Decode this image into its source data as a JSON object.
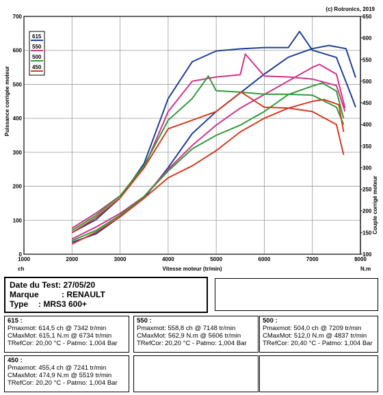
{
  "chart_data": {
    "type": "line",
    "copyright": "(c) Rotronics, 2019",
    "xlabel": "Vitesse moteur (tr/min)",
    "ylabel_left": "Puissance corrigée moteur",
    "ylabel_right": "Couple corrigé moteur",
    "unit_left": "ch",
    "unit_right": "N.m",
    "xlim": [
      1000,
      8000
    ],
    "ylim_left": [
      0,
      700
    ],
    "ylim_right": [
      100,
      650
    ],
    "x_ticks": [
      1000,
      2000,
      3000,
      4000,
      5000,
      6000,
      7000,
      8000
    ],
    "y_ticks_left": [
      0,
      100,
      200,
      300,
      400,
      500,
      600,
      700
    ],
    "y_ticks_right": [
      100,
      150,
      200,
      250,
      300,
      350,
      400,
      450,
      500,
      550,
      600,
      650
    ],
    "grid": true,
    "legend_position": "top-left",
    "series": [
      {
        "name": "615",
        "color": "#1f3f94",
        "power": [
          [
            2000,
            35
          ],
          [
            2500,
            60
          ],
          [
            3000,
            110
          ],
          [
            3500,
            165
          ],
          [
            4000,
            255
          ],
          [
            4500,
            355
          ],
          [
            5000,
            420
          ],
          [
            5500,
            475
          ],
          [
            6000,
            530
          ],
          [
            6500,
            580
          ],
          [
            7000,
            605
          ],
          [
            7342,
            614.5
          ],
          [
            7700,
            605
          ],
          [
            7900,
            520
          ]
        ],
        "torque": [
          [
            2000,
            150
          ],
          [
            2500,
            180
          ],
          [
            3000,
            230
          ],
          [
            3500,
            310
          ],
          [
            4000,
            460
          ],
          [
            4500,
            545
          ],
          [
            5000,
            570
          ],
          [
            5500,
            575
          ],
          [
            6000,
            578
          ],
          [
            6500,
            578
          ],
          [
            6734,
            615.1
          ],
          [
            7000,
            572
          ],
          [
            7500,
            555
          ],
          [
            7800,
            470
          ],
          [
            7900,
            440
          ]
        ]
      },
      {
        "name": "550",
        "color": "#d0338a",
        "power": [
          [
            2000,
            45
          ],
          [
            2500,
            80
          ],
          [
            3000,
            120
          ],
          [
            3500,
            170
          ],
          [
            4000,
            250
          ],
          [
            4500,
            320
          ],
          [
            5000,
            380
          ],
          [
            5500,
            430
          ],
          [
            6000,
            470
          ],
          [
            6500,
            510
          ],
          [
            7000,
            550
          ],
          [
            7148,
            558.8
          ],
          [
            7500,
            530
          ],
          [
            7680,
            430
          ]
        ],
        "torque": [
          [
            2000,
            160
          ],
          [
            2500,
            195
          ],
          [
            3000,
            235
          ],
          [
            3500,
            300
          ],
          [
            4000,
            430
          ],
          [
            4500,
            500
          ],
          [
            5000,
            510
          ],
          [
            5500,
            515
          ],
          [
            5606,
            562.9
          ],
          [
            6000,
            512
          ],
          [
            6500,
            510
          ],
          [
            7000,
            505
          ],
          [
            7500,
            490
          ],
          [
            7680,
            430
          ]
        ]
      },
      {
        "name": "500",
        "color": "#2f9a3a",
        "power": [
          [
            2000,
            40
          ],
          [
            2500,
            70
          ],
          [
            3000,
            115
          ],
          [
            3500,
            170
          ],
          [
            4000,
            245
          ],
          [
            4500,
            310
          ],
          [
            5000,
            350
          ],
          [
            5500,
            380
          ],
          [
            6000,
            420
          ],
          [
            6500,
            470
          ],
          [
            7000,
            495
          ],
          [
            7209,
            504
          ],
          [
            7500,
            480
          ],
          [
            7650,
            400
          ]
        ],
        "torque": [
          [
            2000,
            155
          ],
          [
            2500,
            190
          ],
          [
            3000,
            235
          ],
          [
            3500,
            305
          ],
          [
            4000,
            410
          ],
          [
            4500,
            460
          ],
          [
            4837,
            512
          ],
          [
            5000,
            478
          ],
          [
            5500,
            475
          ],
          [
            6000,
            470
          ],
          [
            6500,
            470
          ],
          [
            7000,
            468
          ],
          [
            7500,
            440
          ],
          [
            7650,
            400
          ]
        ]
      },
      {
        "name": "450",
        "color": "#d43a1f",
        "power": [
          [
            2000,
            30
          ],
          [
            2500,
            65
          ],
          [
            3000,
            110
          ],
          [
            3500,
            165
          ],
          [
            4000,
            225
          ],
          [
            4500,
            260
          ],
          [
            5000,
            305
          ],
          [
            5500,
            360
          ],
          [
            6000,
            400
          ],
          [
            6500,
            430
          ],
          [
            7000,
            450
          ],
          [
            7241,
            455.4
          ],
          [
            7550,
            440
          ],
          [
            7650,
            360
          ]
        ],
        "torque": [
          [
            2000,
            150
          ],
          [
            2500,
            185
          ],
          [
            3000,
            230
          ],
          [
            3500,
            300
          ],
          [
            4000,
            390
          ],
          [
            4500,
            410
          ],
          [
            5000,
            430
          ],
          [
            5519,
            474.9
          ],
          [
            6000,
            440
          ],
          [
            6500,
            438
          ],
          [
            7000,
            430
          ],
          [
            7500,
            400
          ],
          [
            7650,
            330
          ]
        ]
      }
    ]
  },
  "test": {
    "date_label": "Date du Test:",
    "date_value": "27/05/20",
    "brand_label": "Marque",
    "brand_value": ": RENAULT",
    "type_label": "Type",
    "type_value": ": MRS3 600+"
  },
  "results": [
    {
      "id": "615",
      "header": "615 :",
      "pmax": "Pmaxmot: 614,5 ch @ 7342 tr/min",
      "cmax": "CMaxMot: 615,1 N.m @ 6734 tr/min",
      "tref": "TRefCor: 20,00 °C - Patmo: 1,004 Bar"
    },
    {
      "id": "550",
      "header": "550 :",
      "pmax": "Pmaxmot: 558,8 ch @ 7148 tr/min",
      "cmax": "CMaxMot: 562,9 N.m @ 5606 tr/min",
      "tref": "TRefCor: 20,20 °C - Patmo: 1,004 Bar"
    },
    {
      "id": "500",
      "header": "500 :",
      "pmax": "Pmaxmot: 504,0 ch @ 7209 tr/min",
      "cmax": "CMaxMot: 512,0 N.m @ 4837 tr/min",
      "tref": "TRefCor: 20,40 °C - Patmo: 1,004 Bar"
    },
    {
      "id": "450",
      "header": "450 :",
      "pmax": "Pmaxmot: 455,4 ch @ 7241 tr/min",
      "cmax": "CMaxMot: 474,9 N.m @ 5519 tr/min",
      "tref": "TRefCor: 20,20 °C - Patmo: 1,004 Bar"
    }
  ]
}
